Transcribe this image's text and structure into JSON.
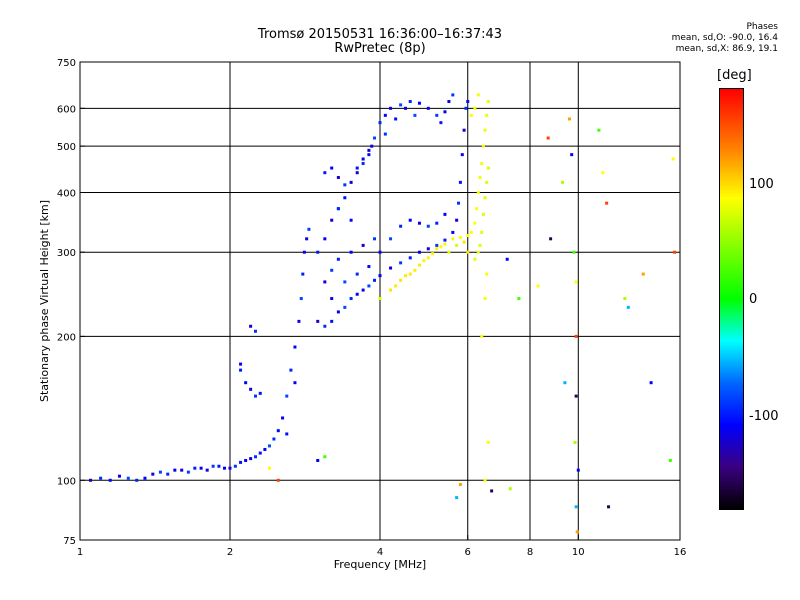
{
  "header": {
    "title_line1": "Tromsø 20150531 16:36:00–16:37:43",
    "title_line2": "RwPretec (8p)"
  },
  "legend": {
    "title": "Phases",
    "line_o": "mean, sd,O: -90.0, 16.4",
    "line_x": "mean, sd,X:  86.9, 19.1"
  },
  "colorbar": {
    "label": "[deg]",
    "ticks": [
      "100",
      "0",
      "-100"
    ],
    "range": [
      -180,
      180
    ]
  },
  "chart_data": {
    "type": "scatter",
    "title": "Tromsø 20150531 16:36:00–16:37:43",
    "subtitle": "RwPretec (8p)",
    "xlabel": "Frequency [MHz]",
    "ylabel": "Stationary phase Virtual Height [km]",
    "xscale": "log",
    "yscale": "log",
    "xlim": [
      1,
      16
    ],
    "ylim": [
      75,
      750
    ],
    "xticks": [
      1,
      2,
      4,
      6,
      8,
      10,
      16
    ],
    "xtick_labels": [
      "1",
      "2",
      "4",
      "6",
      "8",
      "10",
      "16"
    ],
    "yticks": [
      75,
      100,
      200,
      300,
      400,
      500,
      600,
      750
    ],
    "ytick_labels": [
      "75",
      "100",
      "200",
      "300",
      "400",
      "500",
      "600",
      "750"
    ],
    "grid": true,
    "colorscale": "phase in degrees, -180 black/purple, -100 blue, 0 green, 100 yellow, 180 red",
    "series": [
      {
        "mode": "O",
        "color_phase": -95,
        "points": [
          [
            1.05,
            100
          ],
          [
            1.1,
            101
          ],
          [
            1.15,
            100
          ],
          [
            1.2,
            102
          ],
          [
            1.25,
            101
          ],
          [
            1.3,
            100
          ],
          [
            1.35,
            101
          ],
          [
            1.4,
            103
          ],
          [
            1.45,
            104
          ],
          [
            1.5,
            103
          ],
          [
            1.55,
            105
          ],
          [
            1.6,
            105
          ],
          [
            1.65,
            104
          ],
          [
            1.7,
            106
          ],
          [
            1.75,
            106
          ],
          [
            1.8,
            105
          ],
          [
            1.85,
            107
          ],
          [
            1.9,
            107
          ],
          [
            1.95,
            106
          ],
          [
            2.0,
            106
          ],
          [
            2.05,
            107
          ],
          [
            2.1,
            109
          ],
          [
            2.15,
            110
          ],
          [
            2.2,
            111
          ],
          [
            2.25,
            112
          ],
          [
            2.3,
            114
          ],
          [
            2.35,
            116
          ],
          [
            2.4,
            118
          ],
          [
            2.45,
            122
          ],
          [
            2.5,
            127
          ],
          [
            2.55,
            135
          ],
          [
            2.6,
            150
          ],
          [
            2.65,
            170
          ],
          [
            2.7,
            190
          ],
          [
            2.75,
            215
          ],
          [
            2.78,
            240
          ],
          [
            2.8,
            270
          ],
          [
            2.82,
            300
          ],
          [
            2.85,
            320
          ],
          [
            2.88,
            335
          ],
          [
            2.1,
            170
          ],
          [
            2.15,
            160
          ],
          [
            2.2,
            155
          ],
          [
            2.25,
            150
          ],
          [
            2.3,
            152
          ],
          [
            2.1,
            175
          ],
          [
            2.2,
            210
          ],
          [
            2.25,
            205
          ],
          [
            2.6,
            125
          ],
          [
            2.7,
            160
          ],
          [
            3.0,
            215
          ],
          [
            3.1,
            210
          ],
          [
            3.2,
            215
          ],
          [
            3.3,
            225
          ],
          [
            3.4,
            230
          ],
          [
            3.5,
            240
          ],
          [
            3.6,
            245
          ],
          [
            3.7,
            250
          ],
          [
            3.8,
            255
          ],
          [
            3.9,
            262
          ],
          [
            4.0,
            268
          ],
          [
            4.2,
            278
          ],
          [
            4.4,
            285
          ],
          [
            4.6,
            292
          ],
          [
            4.8,
            300
          ],
          [
            5.0,
            305
          ],
          [
            5.2,
            310
          ],
          [
            5.4,
            318
          ],
          [
            5.6,
            330
          ],
          [
            5.7,
            350
          ],
          [
            5.75,
            380
          ],
          [
            5.8,
            420
          ],
          [
            5.85,
            480
          ],
          [
            5.9,
            540
          ],
          [
            5.95,
            600
          ],
          [
            6.0,
            620
          ],
          [
            3.2,
            240
          ],
          [
            3.4,
            260
          ],
          [
            3.6,
            270
          ],
          [
            3.8,
            280
          ],
          [
            4.0,
            300
          ],
          [
            4.2,
            320
          ],
          [
            4.4,
            340
          ],
          [
            4.6,
            350
          ],
          [
            4.8,
            345
          ],
          [
            5.0,
            340
          ],
          [
            5.2,
            345
          ],
          [
            5.4,
            360
          ],
          [
            3.1,
            260
          ],
          [
            3.2,
            275
          ],
          [
            3.3,
            290
          ],
          [
            3.5,
            300
          ],
          [
            3.7,
            310
          ],
          [
            3.9,
            320
          ],
          [
            3.0,
            300
          ],
          [
            3.1,
            320
          ],
          [
            3.2,
            350
          ],
          [
            3.3,
            370
          ],
          [
            3.4,
            390
          ],
          [
            3.5,
            420
          ],
          [
            3.6,
            440
          ],
          [
            3.7,
            460
          ],
          [
            3.8,
            480
          ],
          [
            3.85,
            500
          ],
          [
            3.9,
            520
          ],
          [
            4.0,
            560
          ],
          [
            4.1,
            580
          ],
          [
            4.2,
            600
          ],
          [
            4.4,
            610
          ],
          [
            4.6,
            620
          ],
          [
            4.8,
            615
          ],
          [
            5.0,
            600
          ],
          [
            5.2,
            580
          ],
          [
            5.3,
            560
          ],
          [
            5.4,
            590
          ],
          [
            5.5,
            620
          ],
          [
            5.6,
            640
          ],
          [
            3.1,
            440
          ],
          [
            3.2,
            450
          ],
          [
            3.3,
            430
          ],
          [
            3.4,
            415
          ],
          [
            3.6,
            450
          ],
          [
            3.7,
            470
          ],
          [
            3.8,
            490
          ],
          [
            4.1,
            530
          ],
          [
            4.3,
            570
          ],
          [
            4.5,
            600
          ],
          [
            4.7,
            580
          ],
          [
            3.3,
            370
          ],
          [
            3.5,
            350
          ]
        ]
      },
      {
        "mode": "X",
        "color_phase": 95,
        "points": [
          [
            4.0,
            240
          ],
          [
            4.2,
            250
          ],
          [
            4.4,
            262
          ],
          [
            4.6,
            270
          ],
          [
            4.8,
            282
          ],
          [
            5.0,
            292
          ],
          [
            5.2,
            305
          ],
          [
            5.4,
            312
          ],
          [
            5.6,
            320
          ],
          [
            5.8,
            322
          ],
          [
            6.0,
            325
          ],
          [
            6.1,
            330
          ],
          [
            6.2,
            345
          ],
          [
            6.25,
            370
          ],
          [
            6.3,
            400
          ],
          [
            6.35,
            430
          ],
          [
            6.4,
            460
          ],
          [
            6.45,
            500
          ],
          [
            6.5,
            540
          ],
          [
            6.55,
            580
          ],
          [
            6.6,
            620
          ],
          [
            6.2,
            290
          ],
          [
            6.3,
            300
          ],
          [
            6.35,
            310
          ],
          [
            6.4,
            330
          ],
          [
            6.45,
            360
          ],
          [
            6.5,
            390
          ],
          [
            6.55,
            420
          ],
          [
            6.6,
            450
          ],
          [
            5.5,
            300
          ],
          [
            5.7,
            310
          ],
          [
            5.9,
            315
          ],
          [
            6.0,
            300
          ],
          [
            4.3,
            255
          ],
          [
            4.5,
            268
          ],
          [
            4.7,
            275
          ],
          [
            4.9,
            288
          ],
          [
            5.1,
            298
          ],
          [
            5.3,
            308
          ],
          [
            6.5,
            100
          ],
          [
            6.6,
            120
          ],
          [
            6.4,
            200
          ],
          [
            6.5,
            240
          ],
          [
            6.55,
            270
          ],
          [
            6.1,
            580
          ],
          [
            6.2,
            600
          ],
          [
            6.3,
            640
          ]
        ]
      },
      {
        "mode": "noise",
        "color_phase": 0,
        "points": [
          [
            7.2,
            290
          ],
          [
            7.6,
            240
          ],
          [
            8.3,
            255
          ],
          [
            8.7,
            520
          ],
          [
            8.8,
            320
          ],
          [
            9.3,
            420
          ],
          [
            9.4,
            160
          ],
          [
            9.6,
            570
          ],
          [
            9.7,
            480
          ],
          [
            9.8,
            300
          ],
          [
            9.9,
            260
          ],
          [
            9.9,
            200
          ],
          [
            9.9,
            150
          ],
          [
            9.85,
            120
          ],
          [
            9.9,
            88
          ],
          [
            9.95,
            78
          ],
          [
            10.0,
            105
          ],
          [
            11.0,
            540
          ],
          [
            11.2,
            440
          ],
          [
            11.4,
            380
          ],
          [
            11.5,
            88
          ],
          [
            12.4,
            240
          ],
          [
            12.6,
            230
          ],
          [
            13.5,
            270
          ],
          [
            14.0,
            160
          ],
          [
            15.3,
            110
          ],
          [
            15.5,
            470
          ],
          [
            15.6,
            300
          ],
          [
            6.7,
            95
          ],
          [
            7.3,
            96
          ],
          [
            5.7,
            92
          ],
          [
            5.8,
            98
          ],
          [
            3.0,
            110
          ],
          [
            3.1,
            112
          ],
          [
            2.4,
            106
          ],
          [
            2.5,
            100
          ]
        ]
      }
    ]
  }
}
